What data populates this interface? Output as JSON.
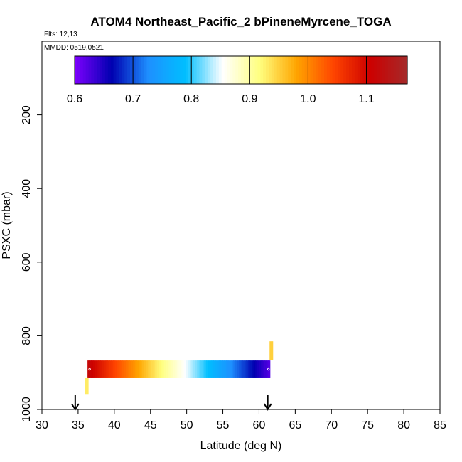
{
  "chart_data": {
    "type": "heatmap",
    "title": "ATOM4 Northeast_Pacific_2 bPineneMyrcene_TOGA",
    "flights_label": "Flts: 12,13",
    "dates_label": "MMDD: 0519,0521",
    "xlabel": "Latitude (deg N)",
    "ylabel": "PSXC (mbar)",
    "xlim": [
      30,
      85
    ],
    "ylim": [
      1000,
      0
    ],
    "x_ticks": [
      "30",
      "35",
      "40",
      "45",
      "50",
      "55",
      "60",
      "65",
      "70",
      "75",
      "80",
      "85"
    ],
    "y_ticks": [
      "200",
      "400",
      "600",
      "800",
      "1000"
    ],
    "colorbar": {
      "range": [
        0.6,
        1.17
      ],
      "ticks": [
        "0.6",
        "0.7",
        "0.8",
        "0.9",
        "1.0",
        "1.1"
      ],
      "colors": [
        "#7f00ff",
        "#0000b0",
        "#1e90ff",
        "#00bfff",
        "#ffffff",
        "#ffff80",
        "#ffa500",
        "#ff4500",
        "#cc0000",
        "#a52a2a"
      ]
    },
    "band": {
      "lat_start": 36.3,
      "lat_end": 61.5,
      "pressure_top": 867,
      "pressure_bottom": 915,
      "value_start": 1.12,
      "value_end": 0.62
    },
    "markers": [
      {
        "lat": 36.2,
        "pressure_top": 915,
        "pressure_bottom": 960,
        "value": 0.93
      },
      {
        "lat": 61.7,
        "pressure_top": 815,
        "pressure_bottom": 865,
        "value": 0.95
      }
    ],
    "arrows": [
      34.6,
      61.2
    ],
    "grid": false
  }
}
